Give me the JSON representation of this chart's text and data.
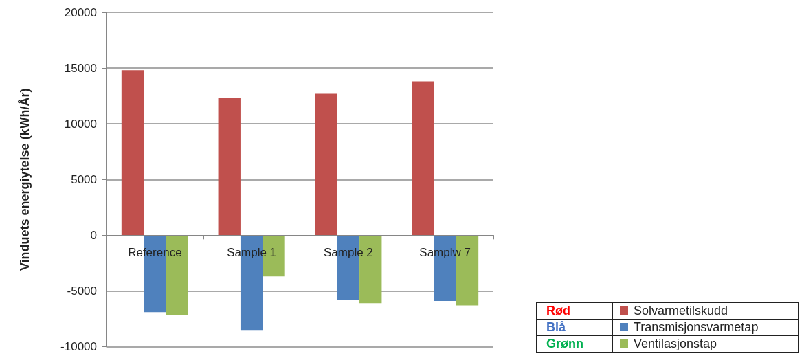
{
  "chart_data": {
    "type": "bar",
    "ylabel": "Vinduets energiytelse (kWh/År)",
    "categories": [
      "Reference",
      "Sample 1",
      "Sample 2",
      "Samplw 7"
    ],
    "series": [
      {
        "name": "Solvarmetilskudd",
        "color": "#c0504d",
        "values": [
          14800,
          12300,
          12700,
          13800
        ]
      },
      {
        "name": "Transmisjonsvarmetap",
        "color": "#4f81bd",
        "values": [
          -6900,
          -8500,
          -5800,
          -5900
        ]
      },
      {
        "name": "Ventilasjonstap",
        "color": "#9bbb59",
        "values": [
          -7200,
          -3700,
          -6100,
          -6300
        ]
      }
    ],
    "annotations": [
      "Rød",
      "Blå",
      "Grønn"
    ],
    "ylim": [
      -10000,
      20000
    ],
    "yticks": [
      -10000,
      -5000,
      0,
      5000,
      10000,
      15000,
      20000
    ],
    "grid": "y",
    "legend": "bottom right"
  }
}
